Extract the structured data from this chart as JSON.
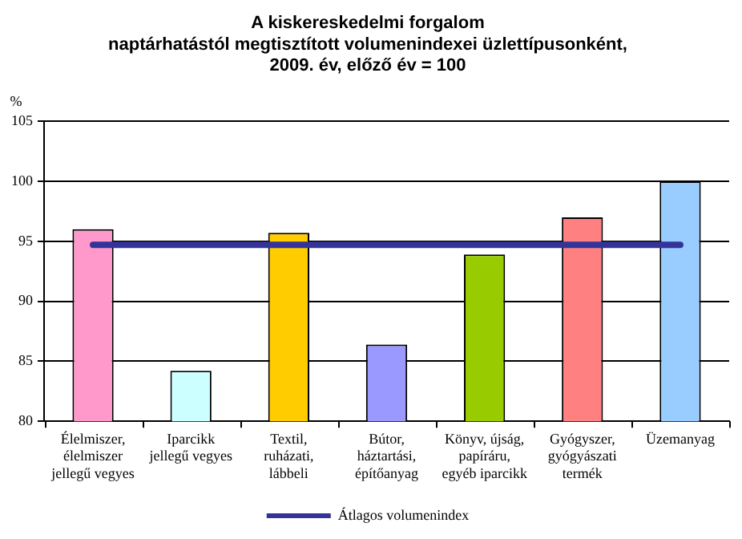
{
  "chart_data": {
    "type": "bar",
    "title": "A kiskereskedelmi forgalom\nnaptárhatástól megtisztított volumenindexei üzlettípusonként,\n2009. év, előző év = 100",
    "ylabel": "%",
    "categories": [
      "Élelmiszer, élelmiszer jellegű vegyes",
      "Iparcikk jellegű vegyes",
      "Textil, ruházati, lábbeli",
      "Bútor, háztartási, építőanyag",
      "Könyv, újság, papíráru, egyéb iparcikk",
      "Gyógyszer, gyógyászati termék",
      "Üzemanyag"
    ],
    "series": [
      {
        "colors": [
          "#ff99cc",
          "#ccffff",
          "#ffcc00",
          "#9999ff",
          "#99cc00",
          "#ff8080",
          "#99ccff"
        ],
        "values": [
          96.0,
          84.2,
          95.7,
          86.4,
          93.9,
          97.0,
          100.0
        ]
      },
      {
        "type": "line",
        "name": "Átlagos volumenindex",
        "color": "#333399",
        "values": [
          94.7,
          94.7,
          94.7,
          94.7,
          94.7,
          94.7,
          94.7
        ]
      }
    ],
    "ylim": [
      80,
      105
    ],
    "yticks": [
      80,
      85,
      90,
      95,
      100,
      105
    ],
    "grid": "y",
    "legend": "bottom",
    "marker": "none"
  }
}
